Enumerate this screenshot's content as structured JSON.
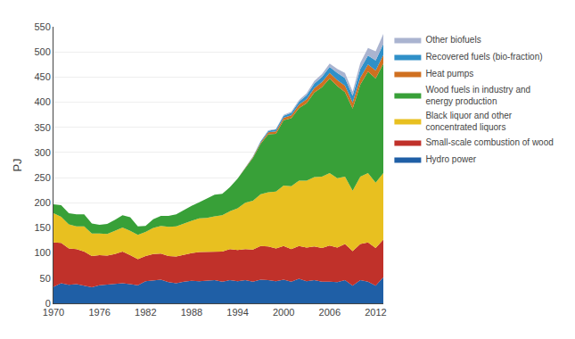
{
  "chart_data": {
    "type": "area",
    "stacked": true,
    "ylabel": "PJ",
    "x": [
      1970,
      1971,
      1972,
      1973,
      1974,
      1975,
      1976,
      1977,
      1978,
      1979,
      1980,
      1981,
      1982,
      1983,
      1984,
      1985,
      1986,
      1987,
      1988,
      1989,
      1990,
      1991,
      1992,
      1993,
      1994,
      1995,
      1996,
      1997,
      1998,
      1999,
      2000,
      2001,
      2002,
      2003,
      2004,
      2005,
      2006,
      2007,
      2008,
      2009,
      2010,
      2011,
      2012,
      2013
    ],
    "series": [
      {
        "name": "Hydro power",
        "color": "#1f5fa6",
        "values": [
          33,
          40,
          37,
          38,
          35,
          32,
          36,
          37,
          38,
          40,
          38,
          36,
          44,
          46,
          47,
          42,
          40,
          43,
          45,
          44,
          45,
          46,
          43,
          46,
          44,
          46,
          43,
          47,
          46,
          44,
          47,
          43,
          49,
          44,
          46,
          43,
          43,
          42,
          46,
          35,
          46,
          43,
          35,
          52
        ]
      },
      {
        "name": "Small-scale combustion of wood",
        "color": "#c0312a",
        "values": [
          88,
          80,
          72,
          70,
          68,
          62,
          60,
          58,
          60,
          63,
          58,
          52,
          50,
          52,
          52,
          52,
          53,
          54,
          55,
          58,
          57,
          57,
          60,
          62,
          62,
          62,
          64,
          67,
          67,
          65,
          67,
          65,
          65,
          67,
          67,
          67,
          72,
          69,
          72,
          69,
          72,
          78,
          75,
          75
        ]
      },
      {
        "name": "Black liquor and other\nconcentrated liquors",
        "color": "#e8c020",
        "values": [
          58,
          52,
          48,
          45,
          50,
          45,
          43,
          43,
          46,
          48,
          48,
          48,
          48,
          52,
          55,
          58,
          60,
          62,
          64,
          67,
          68,
          70,
          72,
          75,
          83,
          92,
          97,
          103,
          108,
          113,
          120,
          125,
          130,
          133,
          138,
          142,
          144,
          138,
          134,
          120,
          134,
          138,
          130,
          132
        ]
      },
      {
        "name": "Wood fuels in industry and\nenergy production",
        "color": "#38a038",
        "values": [
          18,
          23,
          22,
          24,
          24,
          20,
          17,
          20,
          22,
          24,
          27,
          17,
          12,
          17,
          20,
          22,
          24,
          27,
          30,
          32,
          38,
          43,
          43,
          48,
          59,
          69,
          85,
          100,
          115,
          115,
          130,
          135,
          144,
          154,
          168,
          178,
          188,
          183,
          168,
          163,
          183,
          202,
          207,
          218
        ]
      },
      {
        "name": "Heat pumps",
        "color": "#d07020",
        "values": [
          0,
          0,
          0,
          0,
          0,
          0,
          0,
          0,
          0,
          0,
          0,
          0,
          0,
          0,
          0,
          0,
          0,
          0,
          0,
          0,
          0,
          0,
          0,
          0,
          0,
          1,
          2,
          3,
          4,
          5,
          5,
          6,
          7,
          8,
          9,
          10,
          11,
          12,
          13,
          12,
          14,
          14,
          16,
          17
        ]
      },
      {
        "name": "Recovered fuels (bio-fraction)",
        "color": "#3090c8",
        "values": [
          0,
          0,
          0,
          0,
          0,
          0,
          0,
          0,
          0,
          0,
          0,
          0,
          0,
          0,
          0,
          0,
          0,
          0,
          0,
          0,
          0,
          0,
          0,
          0,
          0,
          0,
          1,
          2,
          3,
          4,
          4,
          5,
          6,
          8,
          9,
          10,
          12,
          14,
          15,
          14,
          17,
          18,
          20,
          22
        ]
      },
      {
        "name": "Other biofuels",
        "color": "#aab4d0",
        "values": [
          0,
          0,
          0,
          0,
          0,
          0,
          0,
          0,
          0,
          0,
          0,
          0,
          0,
          0,
          0,
          0,
          0,
          0,
          0,
          0,
          0,
          0,
          0,
          0,
          0,
          0,
          0,
          0,
          1,
          1,
          2,
          2,
          3,
          4,
          5,
          6,
          7,
          8,
          10,
          8,
          12,
          15,
          18,
          20
        ]
      }
    ],
    "xlim": [
      1970,
      2013
    ],
    "xticks": [
      1970,
      1976,
      1982,
      1988,
      1994,
      2000,
      2006,
      2012
    ],
    "ylim": [
      0,
      550
    ],
    "yticks": [
      0,
      50,
      100,
      150,
      200,
      250,
      300,
      350,
      400,
      450,
      500,
      550
    ],
    "grid": true,
    "legend": "right"
  }
}
